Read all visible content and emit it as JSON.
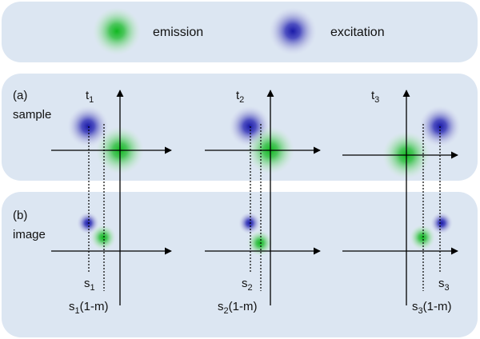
{
  "legend": {
    "emission_label": "emission",
    "excitation_label": "excitation"
  },
  "colors": {
    "emission": "#1fbf2a",
    "excitation": "#2b2bb8",
    "panel": "#dce6f2"
  },
  "rows": {
    "sample": {
      "tag": "(a)",
      "name": "sample"
    },
    "image": {
      "tag": "(b)",
      "name": "image"
    }
  },
  "columns": [
    {
      "time": "t",
      "time_sub": "1",
      "s": "s",
      "s_sub": "1",
      "sm": "s",
      "sm_sub": "1",
      "sm_suffix": "(1-m)"
    },
    {
      "time": "t",
      "time_sub": "2",
      "s": "s",
      "s_sub": "2",
      "sm": "s",
      "sm_sub": "2",
      "sm_suffix": "(1-m)"
    },
    {
      "time": "t",
      "time_sub": "3",
      "s": "s",
      "s_sub": "3",
      "sm": "s",
      "sm_sub": "3",
      "sm_suffix": "(1-m)"
    }
  ]
}
